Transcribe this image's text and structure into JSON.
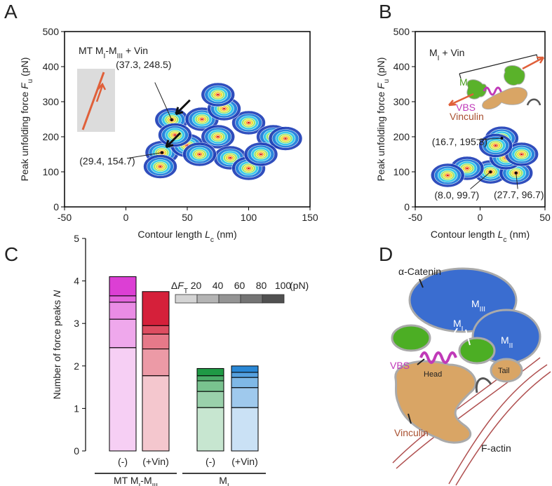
{
  "panel_labels": [
    "A",
    "B",
    "C",
    "D"
  ],
  "chart_data": [
    {
      "type": "contour",
      "title": [
        [
          "MT M",
          ""
        ],
        [
          "I",
          "sub"
        ],
        [
          "-M",
          ""
        ],
        [
          "III",
          "sub"
        ],
        [
          " + Vin",
          ""
        ]
      ],
      "x_label": [
        [
          "Contour length ",
          ""
        ],
        [
          "L",
          "i"
        ],
        [
          "c",
          "sub"
        ],
        [
          " (nm)",
          ""
        ]
      ],
      "y_label": [
        [
          "Peak unfolding force ",
          ""
        ],
        [
          "F",
          "i"
        ],
        [
          "u",
          "sub"
        ],
        [
          " (pN)",
          ""
        ]
      ],
      "xlim": [
        -50,
        150
      ],
      "xticks": [
        -50,
        0,
        50,
        100,
        150
      ],
      "ylim": [
        0,
        500
      ],
      "yticks": [
        0,
        100,
        200,
        300,
        400,
        500
      ],
      "hotspots": {
        "x": [
          37.3,
          29.4,
          50,
          40,
          62,
          75,
          85,
          100,
          100,
          120,
          130,
          110,
          60,
          80,
          75,
          28
        ],
        "y": [
          248.5,
          154.7,
          175,
          205,
          250,
          200,
          140,
          110,
          240,
          200,
          195,
          150,
          150,
          280,
          320,
          115
        ]
      },
      "peaks": [
        {
          "x": 37.3,
          "y": 248.5,
          "label": "(37.3, 248.5)"
        },
        {
          "x": 29.4,
          "y": 154.7,
          "label": "(29.4, 154.7)"
        }
      ]
    },
    {
      "type": "contour",
      "title": [
        [
          "M",
          ""
        ],
        [
          "I",
          "sub"
        ],
        [
          " + Vin",
          ""
        ]
      ],
      "x_label": [
        [
          "Contour length ",
          ""
        ],
        [
          "L",
          "i"
        ],
        [
          "c",
          "sub"
        ],
        [
          " (nm)",
          ""
        ]
      ],
      "y_label": [
        [
          "Peak unfolding force ",
          ""
        ],
        [
          "F",
          "i"
        ],
        [
          "u",
          "sub"
        ],
        [
          " (pN)",
          ""
        ]
      ],
      "xlim": [
        -50,
        50
      ],
      "xticks": [
        -50,
        0,
        50
      ],
      "ylim": [
        0,
        500
      ],
      "yticks": [
        0,
        100,
        200,
        300,
        400,
        500
      ],
      "hotspots": {
        "x": [
          16.7,
          8.0,
          27.7,
          -10,
          20,
          32,
          -25,
          12
        ],
        "y": [
          195.8,
          99.7,
          96.7,
          110,
          140,
          150,
          90,
          175
        ]
      },
      "peaks": [
        {
          "x": 16.7,
          "y": 195.8,
          "label": "(16.7, 195.8)"
        },
        {
          "x": 8.0,
          "y": 99.7,
          "label": "(8.0, 99.7)"
        },
        {
          "x": 27.7,
          "y": 96.7,
          "label": "(27.7, 96.7)"
        }
      ],
      "inset_labels": [
        [
          [
            "M",
            ""
          ],
          [
            "I",
            "sub"
          ]
        ],
        [
          [
            "VBS",
            ""
          ]
        ],
        [
          [
            "Vinculin",
            ""
          ]
        ]
      ]
    },
    {
      "type": "stacked_bar",
      "y_label": [
        [
          "Number of force peaks ",
          ""
        ],
        [
          "N",
          "i"
        ]
      ],
      "categories": [
        "(-)",
        "(+Vin)",
        "(-)",
        "(+Vin)"
      ],
      "category_colors": [
        "#dc3fd4",
        "#d5203a",
        "#1f9a45",
        "#2a88d6"
      ],
      "groups": [
        {
          "label": [
            [
              "MT M",
              ""
            ],
            [
              "I",
              "sub"
            ],
            [
              "-M",
              ""
            ],
            [
              "III",
              "sub"
            ]
          ],
          "span": [
            0,
            1
          ]
        },
        {
          "label": [
            [
              "M",
              ""
            ],
            [
              "I",
              "sub"
            ]
          ],
          "span": [
            2,
            3
          ]
        }
      ],
      "legend_title": [
        [
          "Δ",
          ""
        ],
        [
          "F",
          "i"
        ],
        [
          "T",
          "sub"
        ]
      ],
      "legend_unit": "(pN)",
      "series": [
        {
          "name": "20",
          "color": "#d4d4d4",
          "opacity": 0.25,
          "values": [
            2.43,
            1.77,
            1.02,
            1.02
          ]
        },
        {
          "name": "40",
          "color": "#b4b4b4",
          "opacity": 0.45,
          "values": [
            0.67,
            0.63,
            0.38,
            0.47
          ]
        },
        {
          "name": "60",
          "color": "#949494",
          "opacity": 0.6,
          "values": [
            0.4,
            0.35,
            0.25,
            0.24
          ]
        },
        {
          "name": "80",
          "color": "#747474",
          "opacity": 0.8,
          "values": [
            0.15,
            0.2,
            0.12,
            0.12
          ]
        },
        {
          "name": "100",
          "color": "#505050",
          "opacity": 1,
          "values": [
            0.45,
            0.8,
            0.17,
            0.15
          ]
        }
      ],
      "ylim": [
        0,
        5
      ],
      "yticks": [
        0,
        1,
        2,
        3,
        4,
        5
      ]
    }
  ],
  "diagram": {
    "labels": [
      [
        [
          "α-Catenin",
          ""
        ]
      ],
      [
        [
          "M",
          ""
        ],
        [
          "III",
          "sub"
        ]
      ],
      [
        [
          "M",
          ""
        ],
        [
          "II",
          "sub"
        ]
      ],
      [
        [
          "M",
          ""
        ],
        [
          "I",
          "sub"
        ]
      ],
      [
        [
          "VBS",
          ""
        ]
      ],
      [
        [
          "Head",
          ""
        ]
      ],
      [
        [
          "Tail",
          ""
        ]
      ],
      [
        [
          "Vinculin",
          ""
        ]
      ],
      [
        [
          "F-actin",
          ""
        ]
      ]
    ]
  }
}
